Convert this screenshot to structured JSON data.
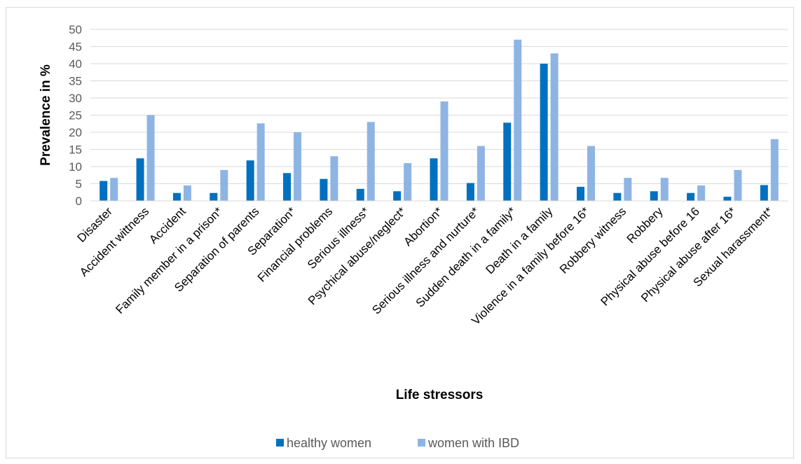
{
  "chart_data": {
    "type": "bar",
    "xlabel": "Life stressors",
    "ylabel": "Prevalence in %",
    "ylim": [
      0,
      50
    ],
    "yticks": [
      0,
      5,
      10,
      15,
      20,
      25,
      30,
      35,
      40,
      45,
      50
    ],
    "grid": true,
    "legend_position": "bottom",
    "categories": [
      "Disaster",
      "Accident wittness",
      "Accident",
      "Family member  in a  prison*",
      "Separation of parents",
      "Separation*",
      "Financial problems",
      "Serious illness*",
      "Psychical abuse/neglect*",
      "Abortion*",
      "Serious illness and nurture*",
      "Sudden death in a family*",
      "Death in a family",
      "Violence in a family before 16*",
      "Robbery witness",
      "Robbery",
      "Physical abuse before 16",
      "Physical abuse after 16*",
      "Sexual harassment*"
    ],
    "series": [
      {
        "name": "healthy women",
        "color": "#0070c0",
        "values": [
          5.8,
          12.4,
          2.3,
          2.3,
          11.8,
          8.1,
          6.4,
          3.5,
          2.8,
          12.4,
          5.2,
          22.8,
          40,
          4.1,
          2.3,
          2.8,
          2.3,
          1.2,
          4.6
        ]
      },
      {
        "name": "women with IBD",
        "color": "#8eb4e3",
        "values": [
          6.7,
          25,
          4.5,
          9,
          22.6,
          20,
          13,
          23,
          11,
          29,
          16,
          47,
          43,
          16,
          6.7,
          6.7,
          4.5,
          9,
          18
        ]
      }
    ]
  }
}
